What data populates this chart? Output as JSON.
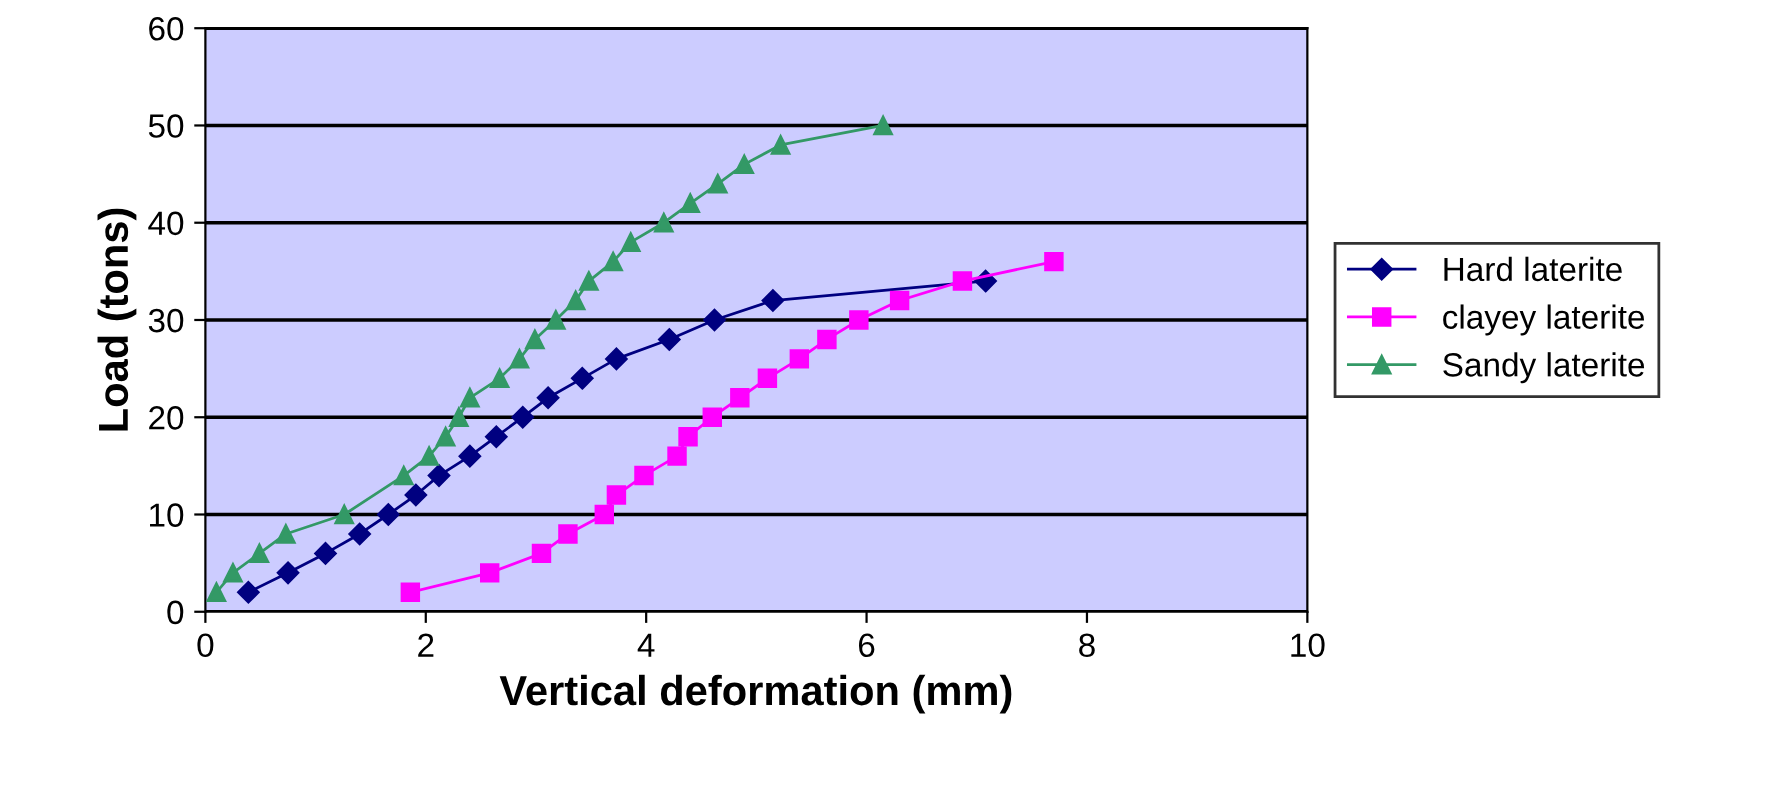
{
  "chart_data": {
    "type": "line",
    "xlabel": "Vertical deformation (mm)",
    "ylabel": "Load (tons)",
    "xlim": [
      0,
      10
    ],
    "xticks": [
      0,
      2,
      4,
      6,
      8,
      10
    ],
    "ylim": [
      0,
      60
    ],
    "yticks": [
      0,
      10,
      20,
      30,
      40,
      50,
      60
    ],
    "grid": "y",
    "legend": "right",
    "series": [
      {
        "name": "Hard laterite",
        "color": "#000080",
        "marker": "diamond",
        "x": [
          0.39,
          0.75,
          1.09,
          1.4,
          1.66,
          1.91,
          2.12,
          2.4,
          2.64,
          2.88,
          3.11,
          3.42,
          3.73,
          4.21,
          4.62,
          5.15,
          7.08
        ],
        "values": [
          2,
          4,
          6,
          8,
          10,
          12,
          14,
          16,
          18,
          20,
          22,
          24,
          26,
          28,
          30,
          32,
          34
        ]
      },
      {
        "name": "clayey laterite",
        "color": "#ff00ff",
        "marker": "square",
        "x": [
          1.86,
          2.58,
          3.05,
          3.29,
          3.62,
          3.73,
          3.98,
          4.28,
          4.38,
          4.6,
          4.85,
          5.1,
          5.39,
          5.64,
          5.93,
          6.3,
          6.87,
          7.7
        ],
        "values": [
          2,
          4,
          6,
          8,
          10,
          12,
          14,
          16,
          18,
          20,
          22,
          24,
          26,
          28,
          30,
          32,
          34,
          36
        ]
      },
      {
        "name": "Sandy laterite",
        "color": "#339966",
        "marker": "triangle",
        "x": [
          0.1,
          0.25,
          0.49,
          0.73,
          1.26,
          1.8,
          2.03,
          2.18,
          2.3,
          2.4,
          2.67,
          2.85,
          2.99,
          3.18,
          3.36,
          3.48,
          3.7,
          3.86,
          4.16,
          4.4,
          4.65,
          4.89,
          5.22,
          6.15
        ],
        "values": [
          2,
          4,
          6,
          8,
          10,
          14,
          16,
          18,
          20,
          22,
          24,
          26,
          28,
          30,
          32,
          34,
          36,
          38,
          40,
          42,
          44,
          46,
          48,
          50
        ]
      }
    ]
  }
}
